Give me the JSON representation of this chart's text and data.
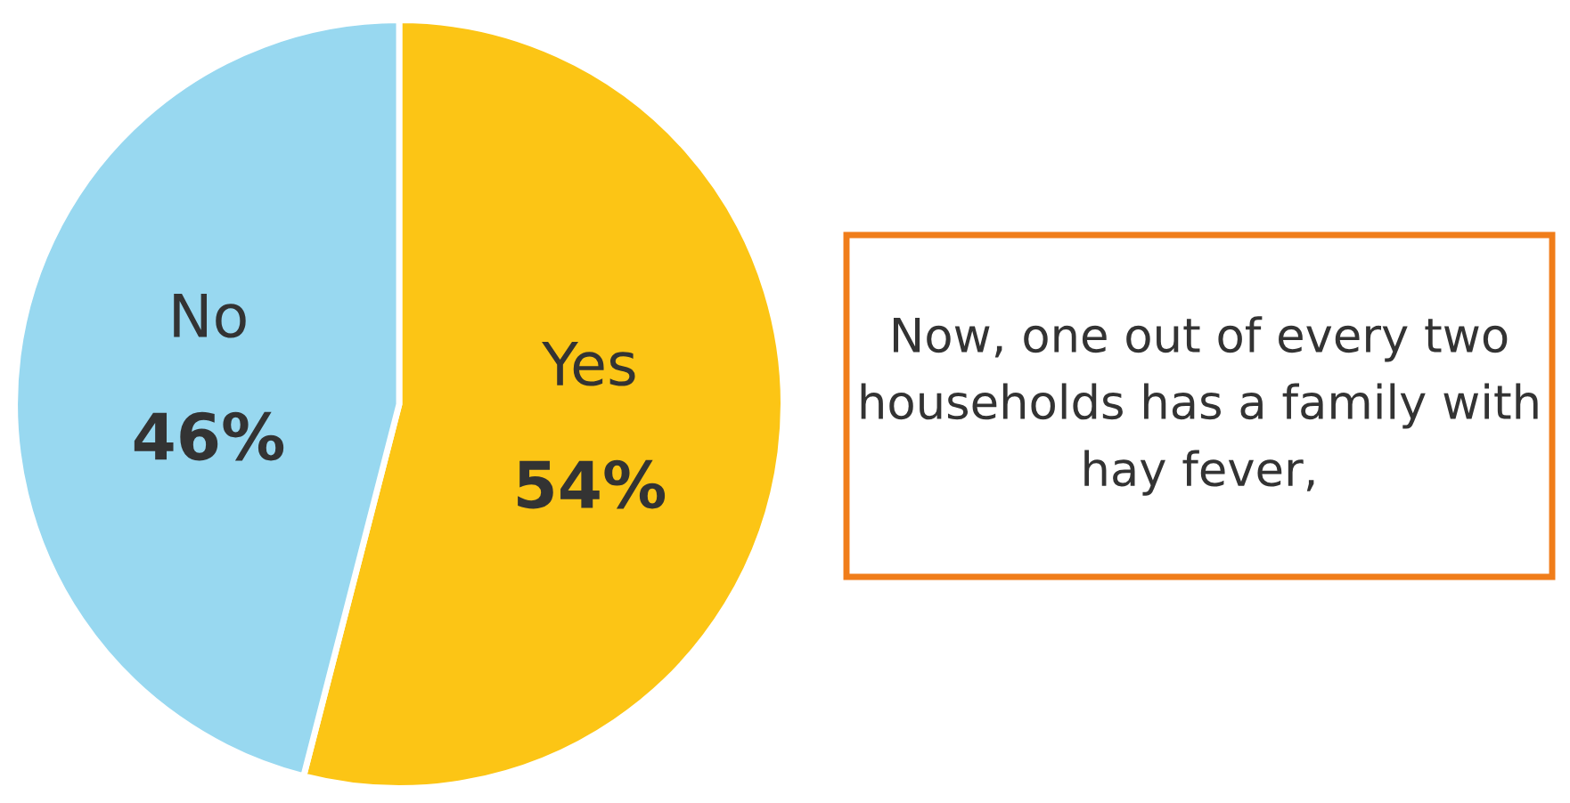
{
  "chart_data": {
    "type": "pie",
    "categories": [
      "Yes",
      "No"
    ],
    "values": [
      54,
      46
    ],
    "value_labels": [
      "54%",
      "46%"
    ],
    "colors": [
      "#fcc515",
      "#98d8f0"
    ],
    "annotations": [
      "Now, one out of every two households has a family with hay fever,"
    ]
  }
}
